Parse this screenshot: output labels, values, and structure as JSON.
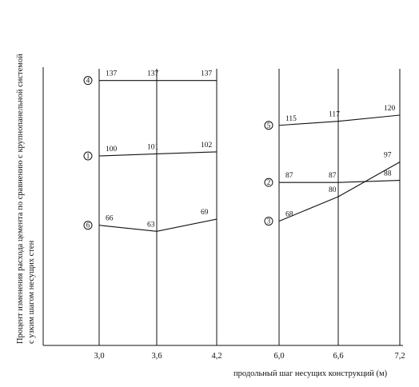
{
  "chart_data": {
    "type": "line",
    "ylabel_line1": "Процент изменения расхода цемента по сравнению с крупнопанельной системой",
    "ylabel_line2": "с узким шагом несущих стен",
    "xlabel": "продольный шаг несущих конструкций (м)",
    "x_ticks": [
      "3,0",
      "3,6",
      "4,2",
      "6,0",
      "6,6",
      "7,2"
    ],
    "grid": "vertical lines at each tick",
    "groups": [
      {
        "x": [
          3.0,
          3.6,
          4.2
        ],
        "series": [
          {
            "name": "4",
            "values": [
              137,
              137,
              137
            ],
            "labels": [
              "137",
              "137",
              "137"
            ]
          },
          {
            "name": "1",
            "values": [
              100,
              101,
              102
            ],
            "labels": [
              "100",
              "101",
              "102"
            ]
          },
          {
            "name": "6",
            "values": [
              66,
              63,
              69
            ],
            "labels": [
              "66",
              "63",
              "69"
            ]
          }
        ]
      },
      {
        "x": [
          6.0,
          6.6,
          7.2
        ],
        "series": [
          {
            "name": "5",
            "values": [
              115,
              117,
              120
            ],
            "labels": [
              "115",
              "117",
              "120"
            ]
          },
          {
            "name": "2",
            "values": [
              87,
              87,
              88
            ],
            "labels": [
              "87",
              "87",
              "88"
            ]
          },
          {
            "name": "3",
            "values": [
              68,
              80,
              97
            ],
            "labels": [
              "68",
              "80",
              "97"
            ]
          }
        ]
      }
    ]
  }
}
